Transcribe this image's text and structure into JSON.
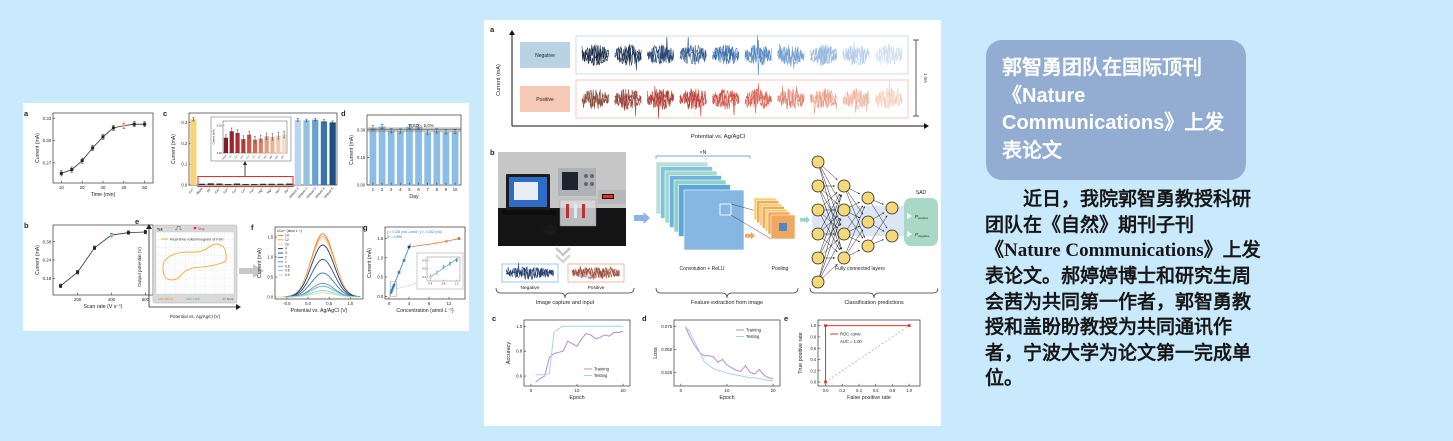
{
  "page": {
    "bg": "#c9e9fc",
    "panel_bg": "#ffffff"
  },
  "announcement": {
    "title_line1": "郭智勇团队在国际顶刊《Nature",
    "title_line2": "Communications》上发表论文",
    "body": "近日，我院郭智勇教授科研团队在《自然》期刊子刊《Nature Communications》上发表论文。郝婷婷博士和研究生周会茜为共同第一作者，郭智勇教授和盖盼盼教授为共同通讯作者，宁波大学为论文第一完成单位。",
    "card_bg": "#92acd2",
    "card_text": "#ffffff"
  },
  "chart_data": {
    "left_a": {
      "type": "line",
      "label": "a",
      "xlabel": "Time (min)",
      "ylabel": "Current (mA)",
      "x": [
        10,
        15,
        20,
        25,
        30,
        35,
        40,
        45,
        50
      ],
      "y": [
        0.256,
        0.261,
        0.273,
        0.29,
        0.305,
        0.317,
        0.32,
        0.322,
        0.322
      ],
      "err": 0.0035,
      "xlim": [
        6,
        54
      ],
      "ylim": [
        0.243,
        0.337
      ],
      "xticks": [
        "10",
        "20",
        "30",
        "40",
        "50"
      ],
      "yticks": [
        "0.27",
        "0.30",
        "0.33"
      ],
      "highlight_index": 6,
      "highlight_color": "#f2a988"
    },
    "left_b": {
      "type": "line",
      "label": "b",
      "xlabel": "Scan rate (V s⁻¹)",
      "ylabel": "Current (mA)",
      "x": [
        100,
        200,
        300,
        400,
        500,
        600
      ],
      "y": [
        0.155,
        0.2,
        0.28,
        0.322,
        0.33,
        0.332
      ],
      "err": 0.006,
      "xlim": [
        55,
        645
      ],
      "ylim": [
        0.125,
        0.355
      ],
      "xticks": [
        "200",
        "400",
        "600"
      ],
      "yticks": [
        "0.18",
        "0.24",
        "0.30"
      ],
      "highlight_index": 3,
      "highlight_color": "#8ecae6"
    },
    "left_c": {
      "type": "bar-selectivity",
      "label": "c",
      "ylabel": "Current (mA)",
      "categories": [
        "Cu²⁺",
        "Blank",
        "Al³⁺",
        "Ca²⁺",
        "Cd²⁺",
        "Co²⁺",
        "Cr³⁺",
        "Fe³⁺",
        "Hg²⁺",
        "Mg²⁺",
        "Mn²⁺",
        "Pb²⁺",
        "Mixture 1",
        "Mixture 2",
        "Mixture 3",
        "Mixture 4",
        "Mixture 5"
      ],
      "values": [
        0.315,
        0.006,
        0.008,
        0.007,
        0.005,
        0.007,
        0.005,
        0.005,
        0.006,
        0.006,
        0.006,
        0.007,
        0.312,
        0.31,
        0.313,
        0.305,
        0.3
      ],
      "colors": [
        "#f6d478",
        "#2e2e2e",
        "#2e2e2e",
        "#2e2e2e",
        "#2e2e2e",
        "#2e2e2e",
        "#2e2e2e",
        "#2e2e2e",
        "#2e2e2e",
        "#2e2e2e",
        "#2e2e2e",
        "#2e2e2e",
        "#b9d5eb",
        "#94c0e0",
        "#68a2d0",
        "#3b74ad",
        "#1d4e85"
      ],
      "errs": [
        0.008,
        0.002,
        0.002,
        0.002,
        0.002,
        0.002,
        0.002,
        0.002,
        0.002,
        0.002,
        0.002,
        0.002,
        0.007,
        0.006,
        0.006,
        0.008,
        0.007
      ],
      "yticks": [
        "0.0",
        "0.1",
        "0.2",
        "0.3"
      ],
      "ylim": [
        0,
        0.345
      ],
      "inset": {
        "ylabel": "Current (mA)",
        "values": [
          0.0055,
          0.0078,
          0.0072,
          0.005,
          0.0066,
          0.0048,
          0.0052,
          0.006,
          0.0058,
          0.0062,
          0.0066
        ],
        "colors": [
          "#7e1c24",
          "#96242c",
          "#aa2e33",
          "#b43c36",
          "#c4564a",
          "#cf6c58",
          "#d98368",
          "#e29b7e",
          "#ebb296",
          "#f2c9ae",
          "#f7dcc8"
        ],
        "err": 0.0012,
        "yticks": [
          "0.00",
          "0.01"
        ],
        "ylim": [
          0,
          0.0115
        ]
      }
    },
    "left_d": {
      "type": "bar-stability",
      "label": "d",
      "xlabel": "Day",
      "ylabel": "Current (mA)",
      "categories": [
        "1",
        "2",
        "3",
        "4",
        "5",
        "6",
        "7",
        "8",
        "9",
        "10"
      ],
      "values": [
        0.31,
        0.318,
        0.295,
        0.293,
        0.317,
        0.316,
        0.287,
        0.294,
        0.289,
        0.291
      ],
      "err": 0.012,
      "bar_color": "#8bbde6",
      "err_color": "#33506e",
      "band": [
        0.287,
        0.313
      ],
      "center_line": 0.3,
      "note": "RSD = 5.0%",
      "yticks": [
        "0.00",
        "0.15",
        "0.30"
      ],
      "ylim": [
        0,
        0.38
      ]
    },
    "left_e": {
      "type": "oscilloscope-cv",
      "label": "e",
      "brand": "Tek",
      "stop": "Stop",
      "legend": "Real-time voltammogram of FSV",
      "xlabel": "Potential vs. Ag/AgCl (V)",
      "ylabel": "Output potential (V)",
      "status": [
        "CH1 500mV",
        "CH2 1.00V",
        "XY Mode"
      ],
      "curve_color": "#f2b14d"
    },
    "left_f": {
      "type": "peaks",
      "label": "f",
      "legend_title": "cCu²⁺ (amol L⁻¹):",
      "xlabel": "Potential vs. Ag/AgCl (V)",
      "ylabel": "Current (mA)",
      "center": 0.35,
      "sigma": 0.27,
      "xlim": [
        -0.78,
        1.3
      ],
      "ylim": [
        -0.05,
        1.75
      ],
      "xticks": [
        "-0.5",
        "0.0",
        "0.5",
        "1.0"
      ],
      "yticks": [
        "0.0",
        "0.5",
        "1.0",
        "1.5"
      ],
      "entries": [
        {
          "label": "14",
          "color": "#e87a2e",
          "h": 1.58
        },
        {
          "label": "12",
          "color": "#f2a55c",
          "h": 1.52
        },
        {
          "label": "10",
          "color": "#f8d9a2",
          "h": 1.46
        },
        {
          "label": "4",
          "color": "#1d3c6e",
          "h": 1.3
        },
        {
          "label": "3",
          "color": "#2c5490",
          "h": 0.94
        },
        {
          "label": "2",
          "color": "#3f72b4",
          "h": 0.6
        },
        {
          "label": "1",
          "color": "#5f94cc",
          "h": 0.34
        },
        {
          "label": "0.8",
          "color": "#5fb6b8",
          "h": 0.27
        },
        {
          "label": "0.6",
          "color": "#8fceb4",
          "h": 0.16
        },
        {
          "label": "0.4",
          "color": "#c4e4c2",
          "h": 0.1
        }
      ]
    },
    "left_g": {
      "type": "calibration",
      "label": "g",
      "xlabel": "Concentration (amol L⁻¹)",
      "ylabel": "Current (mA)",
      "eq1": "y = 0.325 (mA L amol⁻¹) x - 0.032 (mA)",
      "eq2": "R² = 0.998",
      "eq_color": "#2f7fc1",
      "xlim": [
        -0.8,
        15.2
      ],
      "ylim": [
        -0.07,
        1.8
      ],
      "xticks": [
        "0",
        "4",
        "8",
        "12"
      ],
      "yticks": [
        "0.0",
        "0.5",
        "1.0",
        "1.5"
      ],
      "slope": 0.325,
      "intercept": -0.032,
      "linear": {
        "x": [
          0.4,
          0.6,
          0.8,
          1,
          2,
          3,
          4
        ],
        "y": [
          0.1,
          0.16,
          0.23,
          0.29,
          0.62,
          0.93,
          1.28
        ],
        "last_color": "#1d3c6e"
      },
      "sat": {
        "x": [
          9.4,
          11.5,
          14
        ],
        "y": [
          1.38,
          1.43,
          1.5
        ],
        "colors": [
          "#f6c97e",
          "#f09a4e",
          "#e8602e"
        ],
        "line_color": "#e87a50"
      },
      "inset": {
        "x": [
          0.4,
          0.6,
          0.8,
          1.0,
          1.2
        ],
        "y": [
          0.1,
          0.15,
          0.22,
          0.26,
          0.3
        ],
        "colors": [
          "#b8dfae",
          "#9ad4b4",
          "#6fc0bc",
          "#54aec6",
          "#3f98c8"
        ],
        "err": 0.02,
        "xticks": [
          "0.4",
          "0.8",
          "1.2"
        ],
        "yticks": [
          "0.1",
          "0.2",
          "0.3"
        ]
      }
    },
    "mid_a": {
      "type": "traces",
      "panel_label": "a",
      "xlabel": "Potential vs. Ag/AgCl",
      "ylabel": "Current (mA)",
      "scalebar": "1 mA",
      "rows": [
        {
          "label": "Negative",
          "label_bg": "#b9d3e4",
          "border": "#c5d9e8",
          "colors": [
            "#13233f",
            "#1a3154",
            "#23426f",
            "#2c568c",
            "#3b6fae",
            "#5288c2",
            "#739fd0",
            "#93b7de",
            "#b3cdea",
            "#cfe0f2"
          ]
        },
        {
          "label": "Positive",
          "label_bg": "#f6c8b6",
          "border": "#f3c4b4",
          "colors": [
            "#8a4a3a",
            "#96423a",
            "#b03830",
            "#c0392f",
            "#d0493c",
            "#d96352",
            "#e27f6a",
            "#ea9a84",
            "#f0b49e",
            "#f5ccba"
          ]
        }
      ]
    },
    "mid_c": {
      "type": "multiline",
      "label": "c",
      "xlabel": "Epoch",
      "ylabel": "Accuracy",
      "xlim": [
        -1.5,
        21.5
      ],
      "ylim": [
        0.52,
        1.05
      ],
      "xticks": [
        "0",
        "10",
        "20"
      ],
      "yticks": [
        "0.6",
        "0.8",
        "1.0"
      ],
      "x": [
        1,
        2,
        3,
        4,
        5,
        6,
        7,
        8,
        9,
        10,
        11,
        12,
        13,
        14,
        15,
        16,
        17,
        18,
        19,
        20
      ],
      "series": [
        {
          "name": "Training",
          "color": "#b48cce",
          "y": [
            0.55,
            0.58,
            0.6,
            0.75,
            0.78,
            0.79,
            0.8,
            0.88,
            0.86,
            0.84,
            0.9,
            0.94,
            0.93,
            0.9,
            0.91,
            0.93,
            0.92,
            0.95,
            0.95,
            0.96
          ]
        },
        {
          "name": "Testing",
          "color": "#a6d2f0",
          "y": [
            0.61,
            0.61,
            0.61,
            0.62,
            0.95,
            0.98,
            1.0,
            1.0,
            1.0,
            1.0,
            1.0,
            1.0,
            1.0,
            1.0,
            1.0,
            1.0,
            1.0,
            1.0,
            1.0,
            1.0
          ]
        }
      ],
      "legend": "br"
    },
    "mid_d": {
      "type": "multiline",
      "label": "d",
      "xlabel": "Epoch",
      "ylabel": "Loss",
      "xlim": [
        -1.5,
        21.5
      ],
      "ylim": [
        0.01,
        0.082
      ],
      "xticks": [
        "0",
        "10",
        "20"
      ],
      "yticks": [
        "0.025",
        "0.050",
        "0.075"
      ],
      "x": [
        1,
        2,
        3,
        4,
        5,
        6,
        7,
        8,
        9,
        10,
        11,
        12,
        13,
        14,
        15,
        16,
        17,
        18,
        19,
        20
      ],
      "series": [
        {
          "name": "Training",
          "color": "#b48cce",
          "y": [
            0.074,
            0.063,
            0.054,
            0.047,
            0.043,
            0.043,
            0.042,
            0.036,
            0.039,
            0.033,
            0.03,
            0.027,
            0.026,
            0.032,
            0.025,
            0.023,
            0.028,
            0.022,
            0.019,
            0.018
          ]
        },
        {
          "name": "Testing",
          "color": "#a6d2f0",
          "y": [
            0.075,
            0.068,
            0.058,
            0.048,
            0.037,
            0.033,
            0.029,
            0.027,
            0.026,
            0.024,
            0.023,
            0.022,
            0.021,
            0.02,
            0.019,
            0.019,
            0.018,
            0.017,
            0.016,
            0.016
          ]
        }
      ],
      "legend": "tr"
    },
    "mid_e": {
      "type": "roc",
      "label": "e",
      "xlabel": "False positive rate",
      "ylabel": "True positive rate",
      "color": "#e0392e",
      "legend": "ROC curve",
      "auc": "AUC = 1.00",
      "xticks": [
        "0.0",
        "0.2",
        "0.4",
        "0.6",
        "0.8",
        "1.0"
      ],
      "yticks": [
        "0.0",
        "0.2",
        "0.4",
        "0.6",
        "0.8",
        "1.0"
      ],
      "xlim": [
        -0.09,
        1.13
      ],
      "ylim": [
        -0.07,
        1.1
      ]
    }
  },
  "diagram": {
    "panel_label": "b",
    "n_label": "×N",
    "conv": "Convolution + ReLU",
    "pool": "Pooling",
    "fc": "Fully connected layers",
    "sad": "SAD",
    "p": "P",
    "ppos": "positive",
    "pneg": "negative",
    "neg": "Negative",
    "pos": "Positive",
    "cap1": "Image capture and input",
    "cap2": "Feature extraction from image",
    "cap3": "Classification predictions",
    "conv_colors": [
      "#b9dfd6",
      "#7fc4da",
      "#a4d8ce",
      "#6cb2dc",
      "#90d0c8",
      "#5ca6d8",
      "#86b6e2"
    ],
    "pool_colors": [
      "#f6d06a",
      "#f0a860"
    ],
    "node_color": "#f5d878",
    "band_color": "#c9d9ee",
    "sad_bg": "#a9d9c6",
    "kernel_color": "#4f86c6"
  }
}
